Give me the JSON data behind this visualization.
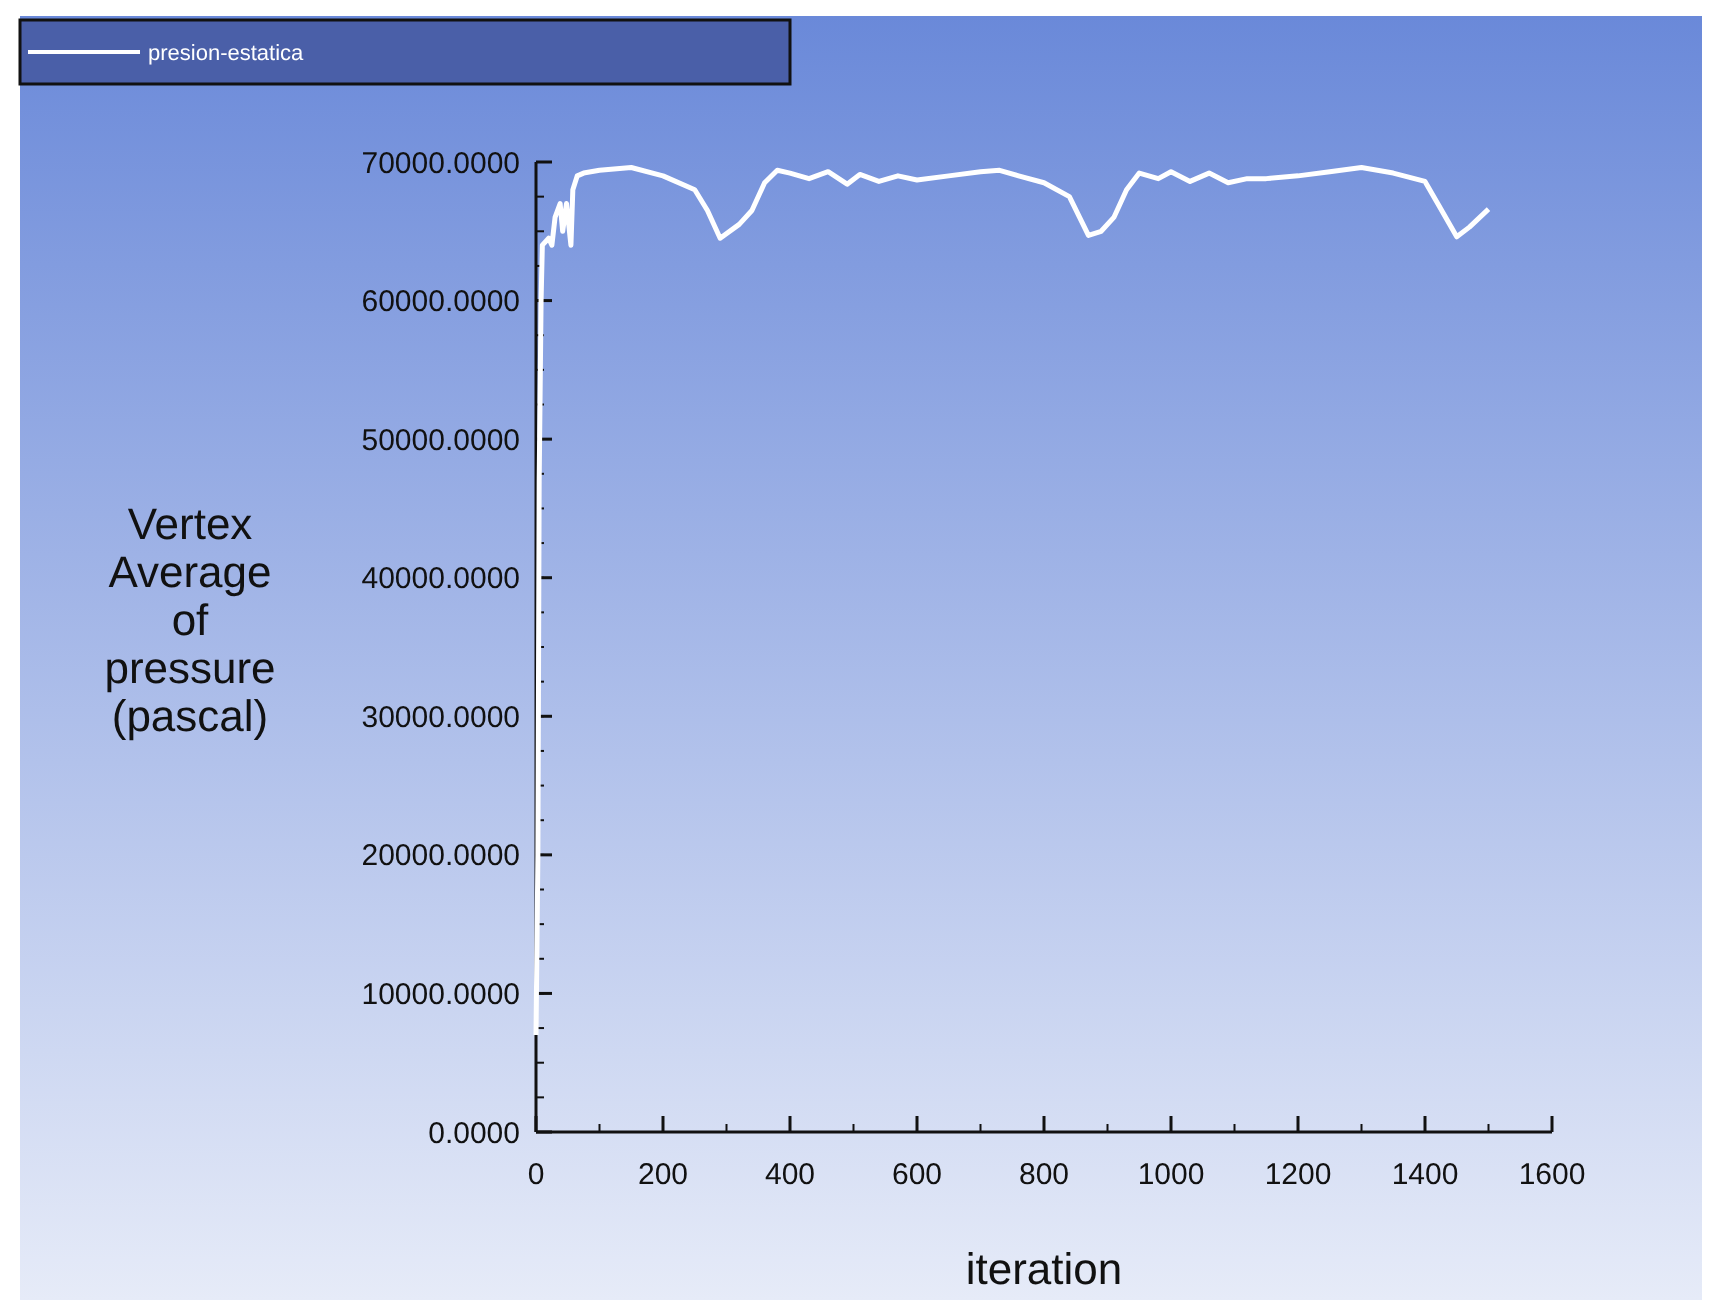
{
  "chart_data": {
    "type": "line",
    "xlabel": "iteration",
    "ylabel": "Vertex Average of pressure (pascal)",
    "legend": "top left",
    "marker": "none",
    "line_style": "solid",
    "grid": false,
    "xlim": [
      0,
      1600
    ],
    "xticks": [
      0,
      200,
      400,
      600,
      800,
      1000,
      1200,
      1400,
      1600
    ],
    "ylim": [
      0,
      70000
    ],
    "yticks": [
      {
        "value": 0,
        "label": "0.0000"
      },
      {
        "value": 10000,
        "label": "10000.0000"
      },
      {
        "value": 20000,
        "label": "20000.0000"
      },
      {
        "value": 30000,
        "label": "30000.0000"
      },
      {
        "value": 40000,
        "label": "40000.0000"
      },
      {
        "value": 50000,
        "label": "50000.0000"
      },
      {
        "value": 60000,
        "label": "60000.0000"
      },
      {
        "value": 70000,
        "label": "70000.0000"
      }
    ],
    "series": [
      {
        "name": "presion-estatica",
        "color": "#ffffff",
        "x": [
          0,
          3,
          5,
          8,
          10,
          20,
          25,
          30,
          38,
          42,
          48,
          55,
          58,
          65,
          75,
          100,
          150,
          200,
          250,
          270,
          290,
          320,
          340,
          360,
          380,
          400,
          430,
          460,
          490,
          510,
          540,
          570,
          600,
          650,
          700,
          730,
          760,
          800,
          840,
          870,
          890,
          910,
          930,
          950,
          980,
          1000,
          1030,
          1060,
          1090,
          1120,
          1150,
          1200,
          1250,
          1300,
          1350,
          1400,
          1420,
          1450,
          1470,
          1500
        ],
        "values": [
          7000,
          20000,
          47000,
          60000,
          64000,
          64500,
          64000,
          66000,
          67000,
          65000,
          67000,
          64000,
          68000,
          69000,
          69200,
          69400,
          69600,
          69000,
          68000,
          66500,
          64500,
          65500,
          66500,
          68500,
          69400,
          69200,
          68800,
          69300,
          68400,
          69100,
          68600,
          69000,
          68700,
          69000,
          69300,
          69400,
          69000,
          68500,
          67500,
          64700,
          65000,
          66000,
          68000,
          69200,
          68800,
          69300,
          68600,
          69200,
          68500,
          68800,
          68800,
          69000,
          69300,
          69600,
          69200,
          68600,
          67000,
          64600,
          65300,
          66600
        ]
      }
    ]
  }
}
